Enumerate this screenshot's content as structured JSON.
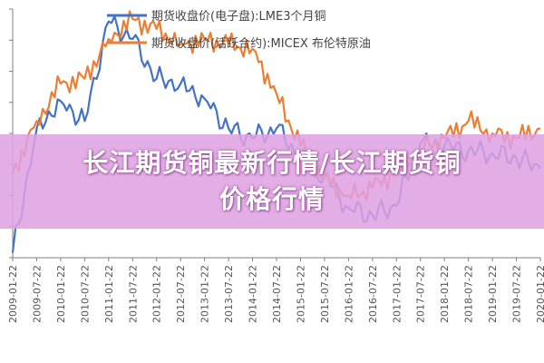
{
  "banner": {
    "line1": "长江期货铜最新行情/长江期货铜",
    "line2": "价格行情"
  },
  "chart_data": {
    "type": "line",
    "title": "",
    "xlabel": "",
    "ylabel": "",
    "legend_position": "top",
    "y_axis_labels_visible": false,
    "grid": false,
    "categories": [
      "2009-01-22",
      "2009-07-22",
      "2010-01-22",
      "2010-07-22",
      "2011-01-22",
      "2011-07-22",
      "2012-01-22",
      "2012-07-22",
      "2013-01-22",
      "2013-07-22",
      "2014-01-22",
      "2014-07-22",
      "2015-01-22",
      "2015-07-22",
      "2016-01-22",
      "2016-07-22",
      "2017-01-22",
      "2017-07-22",
      "2018-01-22",
      "2018-07-22",
      "2019-01-22",
      "2019-07-22",
      "2020-01-22"
    ],
    "ylim": [
      0,
      100
    ],
    "series": [
      {
        "name": "期货收盘价(电子盘):LME3个月铜",
        "color": "#4472C4",
        "values": [
          2,
          52,
          63,
          55,
          95,
          88,
          72,
          70,
          64,
          52,
          48,
          52,
          40,
          33,
          20,
          17,
          21,
          46,
          45,
          43,
          42,
          40,
          36
        ]
      },
      {
        "name": "期货收盘价(活跃合约):MICEX 布伦特原油",
        "color": "#ED7D31",
        "values": [
          34,
          55,
          70,
          72,
          88,
          96,
          92,
          86,
          88,
          86,
          84,
          66,
          45,
          32,
          25,
          28,
          35,
          44,
          48,
          55,
          50,
          48,
          52
        ]
      }
    ]
  }
}
